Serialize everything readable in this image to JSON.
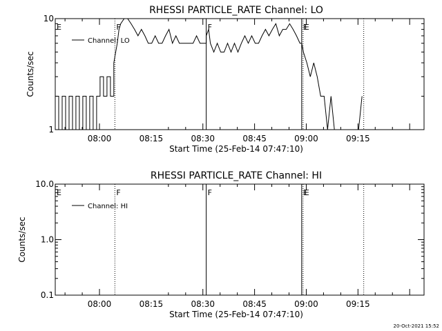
{
  "chart_data": [
    {
      "type": "line",
      "title": "RHESSI PARTICLE_RATE Channel: LO",
      "xlabel": "Start Time (25-Feb-14 07:47:10)",
      "ylabel": "Counts/sec",
      "x_unit": "minutes since 07:47:10",
      "xlim": [
        0,
        107
      ],
      "yscale": "log",
      "ylim": [
        1,
        10
      ],
      "x_tick_values": [
        12.83,
        27.83,
        42.83,
        57.83,
        72.83,
        87.83
      ],
      "x_tick_labels": [
        "08:00",
        "08:15",
        "08:30",
        "08:45",
        "09:00",
        "09:15"
      ],
      "y_tick_values": [
        1,
        10
      ],
      "y_tick_labels": [
        "1",
        "10"
      ],
      "legend": {
        "entries": [
          "Channel: LO"
        ],
        "placement": "top-left"
      },
      "markers": [
        {
          "label": "E",
          "x": 0,
          "style": "solid"
        },
        {
          "label": "F",
          "x": 17.3,
          "style": "dotted"
        },
        {
          "label": "F",
          "x": 43.8,
          "style": "solid"
        },
        {
          "label": "E",
          "x": 71.5,
          "style": "solid"
        },
        {
          "label": "E",
          "x": 71.9,
          "style": "dotted"
        },
        {
          "label": "",
          "x": 89.5,
          "style": "dotted"
        }
      ],
      "series": [
        {
          "name": "Channel: LO",
          "x": [
            0,
            1,
            1,
            2,
            2,
            3,
            3,
            4,
            4,
            5,
            5,
            6,
            6,
            7,
            7,
            8,
            8,
            9,
            9,
            10,
            10,
            11,
            11,
            12,
            12,
            13,
            13,
            14,
            14,
            15,
            15,
            16,
            16,
            17,
            17,
            18,
            18.5,
            19,
            20,
            21,
            22,
            23,
            24,
            25,
            26,
            27,
            28,
            29,
            30,
            31,
            32,
            33,
            34,
            35,
            36,
            37,
            38,
            39,
            40,
            41,
            42,
            43,
            43.8,
            43.8,
            44.5,
            45,
            46,
            47,
            48,
            49,
            50,
            51,
            52,
            53,
            54,
            55,
            56,
            57,
            58,
            59,
            60,
            61,
            62,
            63,
            64,
            65,
            66,
            67,
            68,
            69,
            70,
            71,
            71.5,
            72,
            73,
            74,
            75,
            76,
            77,
            78,
            79,
            80,
            81,
            82,
            83,
            84,
            85,
            86,
            87,
            88,
            89
          ],
          "y": [
            2,
            2,
            1,
            1,
            2,
            2,
            1,
            1,
            2,
            2,
            1,
            1,
            2,
            2,
            1,
            1,
            2,
            2,
            1,
            1,
            2,
            2,
            1,
            1,
            2,
            2,
            3,
            3,
            2,
            2,
            3,
            3,
            2,
            2,
            4,
            6,
            8,
            9,
            10,
            10,
            9,
            8,
            7,
            8,
            7,
            6,
            6,
            7,
            6,
            6,
            7,
            8,
            6,
            7,
            6,
            6,
            6,
            6,
            6,
            7,
            6,
            6,
            6,
            7,
            8,
            6,
            5,
            6,
            5,
            5,
            6,
            5,
            6,
            5,
            6,
            7,
            6,
            7,
            6,
            6,
            7,
            8,
            7,
            8,
            9,
            7,
            8,
            8,
            9,
            8,
            7,
            6,
            6,
            5,
            4,
            3,
            4,
            3,
            2,
            2,
            1,
            2,
            1,
            1,
            1,
            1,
            1,
            1,
            1,
            1,
            2
          ]
        }
      ]
    },
    {
      "type": "line",
      "title": "RHESSI PARTICLE_RATE Channel: HI",
      "xlabel": "Start Time (25-Feb-14 07:47:10)",
      "ylabel": "Counts/sec",
      "x_unit": "minutes since 07:47:10",
      "xlim": [
        0,
        107
      ],
      "yscale": "log",
      "ylim": [
        0.1,
        10
      ],
      "x_tick_values": [
        12.83,
        27.83,
        42.83,
        57.83,
        72.83,
        87.83
      ],
      "x_tick_labels": [
        "08:00",
        "08:15",
        "08:30",
        "08:45",
        "09:00",
        "09:15"
      ],
      "y_tick_values": [
        0.1,
        1,
        10
      ],
      "y_tick_labels": [
        "0.1",
        "1.0",
        "10.0"
      ],
      "legend": {
        "entries": [
          "Channel: HI"
        ],
        "placement": "top-left"
      },
      "markers": [
        {
          "label": "E",
          "x": 0,
          "style": "solid"
        },
        {
          "label": "F",
          "x": 17.3,
          "style": "dotted"
        },
        {
          "label": "F",
          "x": 43.8,
          "style": "solid"
        },
        {
          "label": "E",
          "x": 71.5,
          "style": "solid"
        },
        {
          "label": "E",
          "x": 71.9,
          "style": "dotted"
        },
        {
          "label": "",
          "x": 89.5,
          "style": "dotted"
        }
      ],
      "series": [
        {
          "name": "Channel: HI",
          "x": [],
          "y": []
        }
      ]
    }
  ],
  "footer": {
    "timestamp": "20-Oct-2021 15:52"
  }
}
